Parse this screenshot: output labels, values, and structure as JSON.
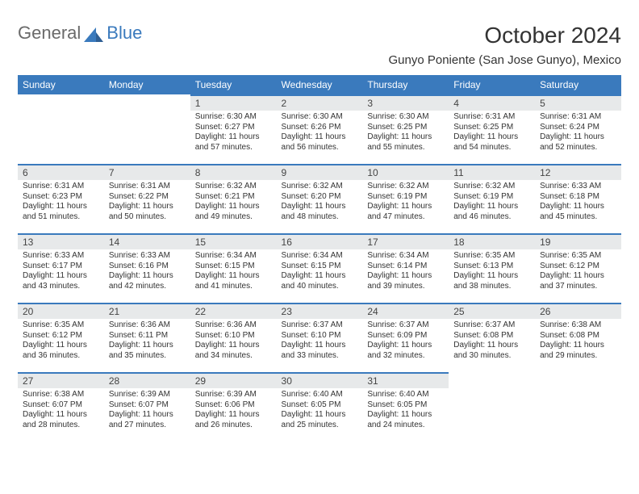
{
  "logo": {
    "general": "General",
    "blue": "Blue"
  },
  "title": "October 2024",
  "location": "Gunyo Poniente (San Jose Gunyo), Mexico",
  "colors": {
    "accent": "#3a7abd",
    "header_text": "#ffffff",
    "daybar_bg": "#e7e9ea",
    "body_text": "#333333",
    "logo_gray": "#6a6a6a"
  },
  "day_headers": [
    "Sunday",
    "Monday",
    "Tuesday",
    "Wednesday",
    "Thursday",
    "Friday",
    "Saturday"
  ],
  "weeks": [
    [
      {
        "blank": true
      },
      {
        "blank": true
      },
      {
        "n": "1",
        "sr": "6:30 AM",
        "ss": "6:27 PM",
        "dl": "11 hours and 57 minutes."
      },
      {
        "n": "2",
        "sr": "6:30 AM",
        "ss": "6:26 PM",
        "dl": "11 hours and 56 minutes."
      },
      {
        "n": "3",
        "sr": "6:30 AM",
        "ss": "6:25 PM",
        "dl": "11 hours and 55 minutes."
      },
      {
        "n": "4",
        "sr": "6:31 AM",
        "ss": "6:25 PM",
        "dl": "11 hours and 54 minutes."
      },
      {
        "n": "5",
        "sr": "6:31 AM",
        "ss": "6:24 PM",
        "dl": "11 hours and 52 minutes."
      }
    ],
    [
      {
        "n": "6",
        "sr": "6:31 AM",
        "ss": "6:23 PM",
        "dl": "11 hours and 51 minutes."
      },
      {
        "n": "7",
        "sr": "6:31 AM",
        "ss": "6:22 PM",
        "dl": "11 hours and 50 minutes."
      },
      {
        "n": "8",
        "sr": "6:32 AM",
        "ss": "6:21 PM",
        "dl": "11 hours and 49 minutes."
      },
      {
        "n": "9",
        "sr": "6:32 AM",
        "ss": "6:20 PM",
        "dl": "11 hours and 48 minutes."
      },
      {
        "n": "10",
        "sr": "6:32 AM",
        "ss": "6:19 PM",
        "dl": "11 hours and 47 minutes."
      },
      {
        "n": "11",
        "sr": "6:32 AM",
        "ss": "6:19 PM",
        "dl": "11 hours and 46 minutes."
      },
      {
        "n": "12",
        "sr": "6:33 AM",
        "ss": "6:18 PM",
        "dl": "11 hours and 45 minutes."
      }
    ],
    [
      {
        "n": "13",
        "sr": "6:33 AM",
        "ss": "6:17 PM",
        "dl": "11 hours and 43 minutes."
      },
      {
        "n": "14",
        "sr": "6:33 AM",
        "ss": "6:16 PM",
        "dl": "11 hours and 42 minutes."
      },
      {
        "n": "15",
        "sr": "6:34 AM",
        "ss": "6:15 PM",
        "dl": "11 hours and 41 minutes."
      },
      {
        "n": "16",
        "sr": "6:34 AM",
        "ss": "6:15 PM",
        "dl": "11 hours and 40 minutes."
      },
      {
        "n": "17",
        "sr": "6:34 AM",
        "ss": "6:14 PM",
        "dl": "11 hours and 39 minutes."
      },
      {
        "n": "18",
        "sr": "6:35 AM",
        "ss": "6:13 PM",
        "dl": "11 hours and 38 minutes."
      },
      {
        "n": "19",
        "sr": "6:35 AM",
        "ss": "6:12 PM",
        "dl": "11 hours and 37 minutes."
      }
    ],
    [
      {
        "n": "20",
        "sr": "6:35 AM",
        "ss": "6:12 PM",
        "dl": "11 hours and 36 minutes."
      },
      {
        "n": "21",
        "sr": "6:36 AM",
        "ss": "6:11 PM",
        "dl": "11 hours and 35 minutes."
      },
      {
        "n": "22",
        "sr": "6:36 AM",
        "ss": "6:10 PM",
        "dl": "11 hours and 34 minutes."
      },
      {
        "n": "23",
        "sr": "6:37 AM",
        "ss": "6:10 PM",
        "dl": "11 hours and 33 minutes."
      },
      {
        "n": "24",
        "sr": "6:37 AM",
        "ss": "6:09 PM",
        "dl": "11 hours and 32 minutes."
      },
      {
        "n": "25",
        "sr": "6:37 AM",
        "ss": "6:08 PM",
        "dl": "11 hours and 30 minutes."
      },
      {
        "n": "26",
        "sr": "6:38 AM",
        "ss": "6:08 PM",
        "dl": "11 hours and 29 minutes."
      }
    ],
    [
      {
        "n": "27",
        "sr": "6:38 AM",
        "ss": "6:07 PM",
        "dl": "11 hours and 28 minutes."
      },
      {
        "n": "28",
        "sr": "6:39 AM",
        "ss": "6:07 PM",
        "dl": "11 hours and 27 minutes."
      },
      {
        "n": "29",
        "sr": "6:39 AM",
        "ss": "6:06 PM",
        "dl": "11 hours and 26 minutes."
      },
      {
        "n": "30",
        "sr": "6:40 AM",
        "ss": "6:05 PM",
        "dl": "11 hours and 25 minutes."
      },
      {
        "n": "31",
        "sr": "6:40 AM",
        "ss": "6:05 PM",
        "dl": "11 hours and 24 minutes."
      },
      {
        "blank": true
      },
      {
        "blank": true
      }
    ]
  ],
  "labels": {
    "sunrise_prefix": "Sunrise: ",
    "sunset_prefix": "Sunset: ",
    "daylight_prefix": "Daylight: "
  }
}
